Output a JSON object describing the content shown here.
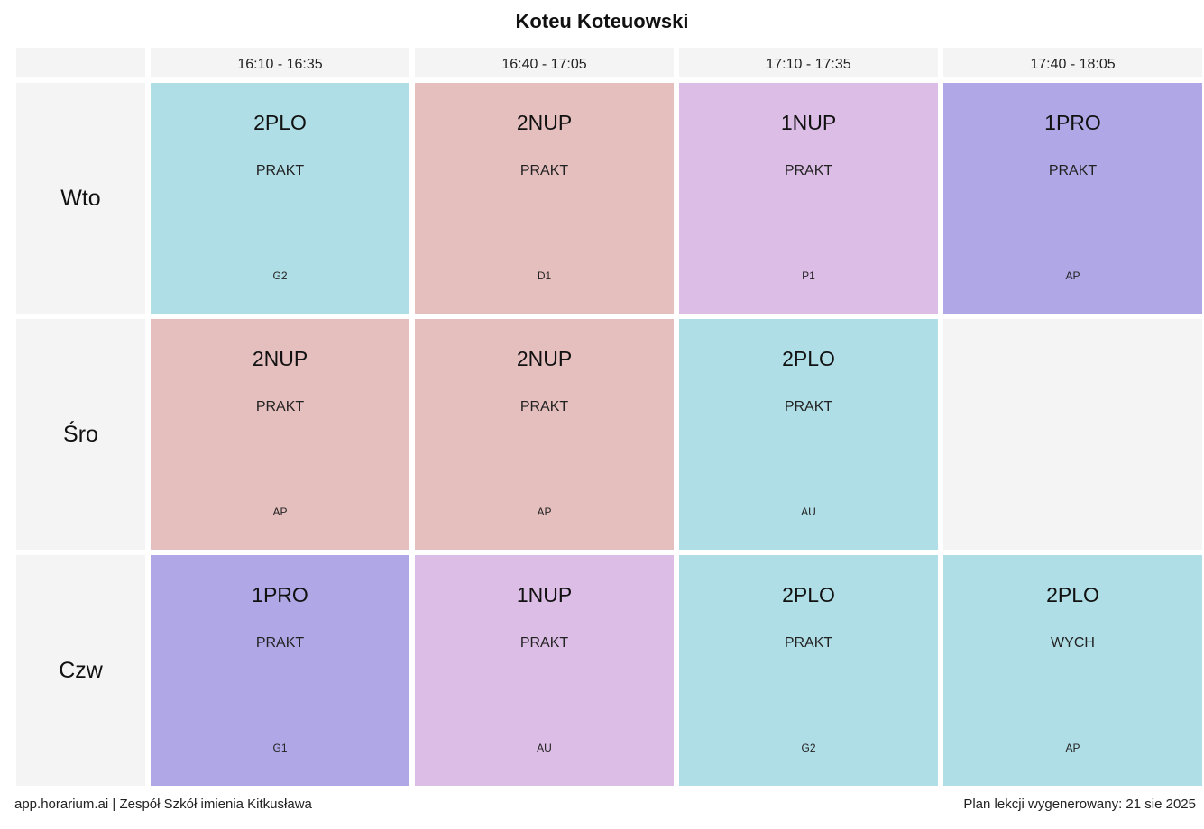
{
  "title": "Koteu Koteuowski",
  "colors": {
    "2PLO": "#b0dee6",
    "2NUP": "#e5bebe",
    "1NUP": "#dcbde6",
    "1PRO": "#b0a8e6",
    "empty": "#f4f4f4"
  },
  "time_slots": [
    "16:10 - 16:35",
    "16:40 - 17:05",
    "17:10 - 17:35",
    "17:40 - 18:05"
  ],
  "days": [
    {
      "label": "Wto",
      "lessons": [
        {
          "cls": "2PLO",
          "subject": "PRAKT",
          "room": "G2"
        },
        {
          "cls": "2NUP",
          "subject": "PRAKT",
          "room": "D1"
        },
        {
          "cls": "1NUP",
          "subject": "PRAKT",
          "room": "P1"
        },
        {
          "cls": "1PRO",
          "subject": "PRAKT",
          "room": "AP"
        }
      ]
    },
    {
      "label": "Śro",
      "lessons": [
        {
          "cls": "2NUP",
          "subject": "PRAKT",
          "room": "AP"
        },
        {
          "cls": "2NUP",
          "subject": "PRAKT",
          "room": "AP"
        },
        {
          "cls": "2PLO",
          "subject": "PRAKT",
          "room": "AU"
        },
        null
      ]
    },
    {
      "label": "Czw",
      "lessons": [
        {
          "cls": "1PRO",
          "subject": "PRAKT",
          "room": "G1"
        },
        {
          "cls": "1NUP",
          "subject": "PRAKT",
          "room": "AU"
        },
        {
          "cls": "2PLO",
          "subject": "PRAKT",
          "room": "G2"
        },
        {
          "cls": "2PLO",
          "subject": "WYCH",
          "room": "AP"
        }
      ]
    }
  ],
  "footer": {
    "left": "app.horarium.ai | Zespół Szkół imienia Kitkusława",
    "right": "Plan lekcji wygenerowany: 21 sie 2025"
  }
}
